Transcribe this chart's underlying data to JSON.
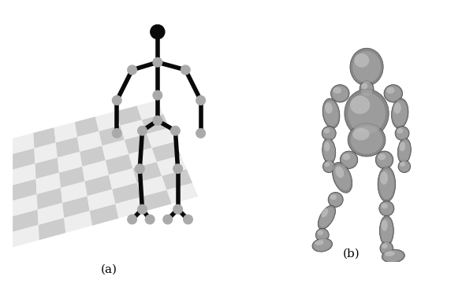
{
  "figure_width": 5.86,
  "figure_height": 3.84,
  "dpi": 100,
  "background_color": "#ffffff",
  "label_a": "(a)",
  "label_b": "(b)",
  "label_fontsize": 11,
  "checker_light": "#cccccc",
  "checker_dark": "#eeeeee",
  "skeleton_color": "#0a0a0a",
  "joint_color": "#aaaaaa",
  "body3d_base": "#888888",
  "body3d_mid": "#aaaaaa",
  "body3d_light": "#cccccc",
  "body3d_dark": "#555555"
}
